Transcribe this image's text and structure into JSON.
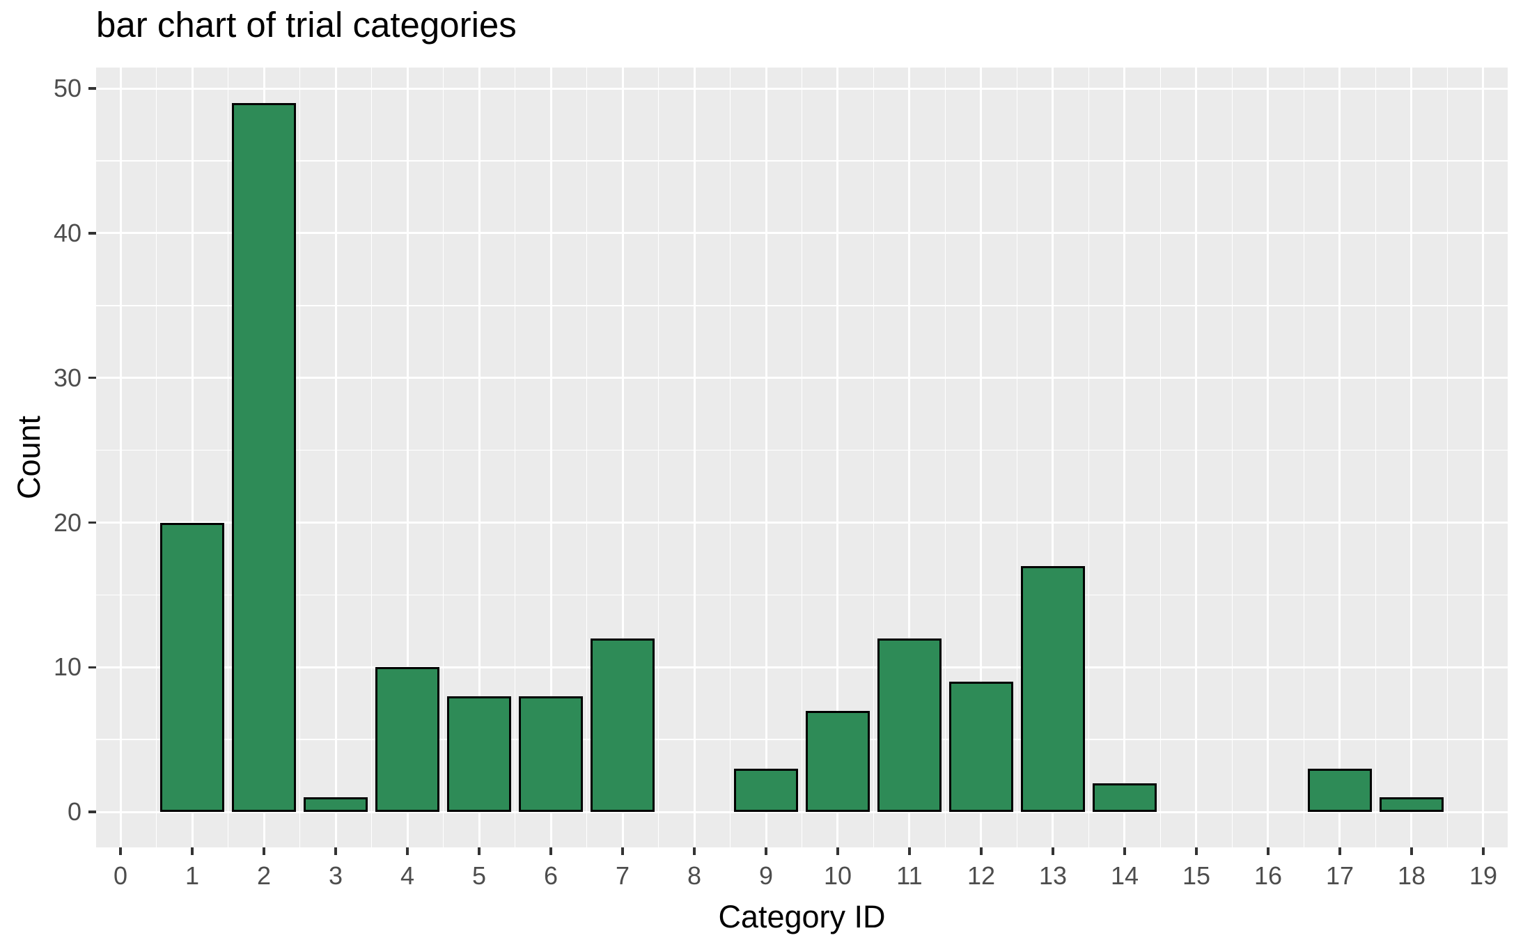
{
  "chart_data": {
    "type": "bar",
    "title": "bar chart of trial categories",
    "xlabel": "Category ID",
    "ylabel": "Count",
    "categories": [
      0,
      1,
      2,
      3,
      4,
      5,
      6,
      7,
      8,
      9,
      10,
      11,
      12,
      13,
      14,
      15,
      16,
      17,
      18,
      19
    ],
    "values": [
      0,
      20,
      49,
      1,
      10,
      8,
      8,
      12,
      0,
      3,
      7,
      12,
      9,
      17,
      2,
      0,
      0,
      3,
      1,
      0
    ],
    "x_ticks": [
      "0",
      "1",
      "2",
      "3",
      "4",
      "5",
      "6",
      "7",
      "8",
      "9",
      "10",
      "11",
      "12",
      "13",
      "14",
      "15",
      "16",
      "17",
      "18",
      "19"
    ],
    "y_ticks": [
      0,
      10,
      20,
      30,
      40,
      50
    ],
    "y_minor_ticks": [
      5,
      15,
      25,
      35,
      45
    ],
    "x_minor_positions": [
      0.5,
      1.5,
      2.5,
      3.5,
      4.5,
      5.5,
      6.5,
      7.5,
      8.5,
      9.5,
      10.5,
      11.5,
      12.5,
      13.5,
      14.5,
      15.5,
      16.5,
      17.5,
      18.5
    ],
    "xlim": [
      -0.34,
      19.34
    ],
    "ylim": [
      -2.45,
      51.45
    ],
    "bar_width": 0.9,
    "grid": "major-and-minor",
    "legend": "none",
    "colors": {
      "bar_fill": "#2e8b57",
      "bar_edge": "#000000",
      "panel_background": "#ebebeb",
      "gridline": "#ffffff",
      "tick_label": "#4d4d4d",
      "tick_mark": "#333333",
      "title": "#000000"
    }
  }
}
